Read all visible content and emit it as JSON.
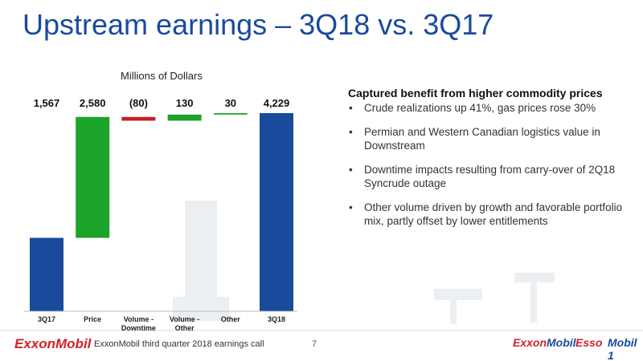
{
  "title": "Upstream earnings – 3Q18 vs. 3Q17",
  "chart_data": {
    "type": "waterfall",
    "subtitle": "Millions of Dollars",
    "categories": [
      "3Q17",
      "Price",
      "Volume - Downtime",
      "Volume - Other",
      "Other",
      "3Q18"
    ],
    "values": [
      1567,
      2580,
      -80,
      130,
      30,
      4229
    ],
    "value_labels": [
      "1,567",
      "2,580",
      "(80)",
      "130",
      "30",
      "4,229"
    ],
    "colors": [
      "#1a4a9c",
      "#1ca32a",
      "#c42127",
      "#1ca32a",
      "#1ca32a",
      "#1a4a9c"
    ],
    "totals": [
      true,
      false,
      false,
      false,
      false,
      true
    ]
  },
  "commentary": {
    "heading": "Captured benefit from higher commodity prices",
    "bullets": [
      "Crude realizations up 41%, gas prices rose 30%",
      "Permian and Western Canadian logistics value in Downstream",
      "Downtime impacts resulting from carry-over of 2Q18 Syncrude outage",
      "Other volume driven by growth and favorable portfolio mix, partly offset by lower entitlements"
    ]
  },
  "footer": {
    "logo": "ExxonMobil",
    "caption": "ExxonMobil third quarter 2018 earnings call",
    "page": "7",
    "brands": [
      "Exxon",
      "Mobil",
      "Esso",
      "Mobil 1"
    ]
  }
}
